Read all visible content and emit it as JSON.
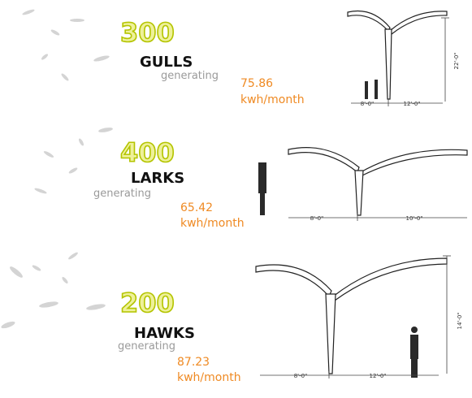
{
  "sections": [
    {
      "count": "300",
      "name": "GULLS",
      "label": "generating",
      "energy": "75.86",
      "unit": "kwh/month",
      "dimensions": [
        "8'-0\"",
        "12'-0\"",
        "22'-0\""
      ]
    },
    {
      "count": "400",
      "name": "LARKS",
      "label": "generating",
      "energy": "65.42",
      "unit": "kwh/month",
      "dimensions": [
        "8'-0\"",
        "10'-0\""
      ]
    },
    {
      "count": "200",
      "name": "HAWKS",
      "label": "generating",
      "energy": "87.23",
      "unit": "kwh/month",
      "dimensions": [
        "8'-0\"",
        "12'-0\"",
        "14'-0\""
      ]
    }
  ]
}
